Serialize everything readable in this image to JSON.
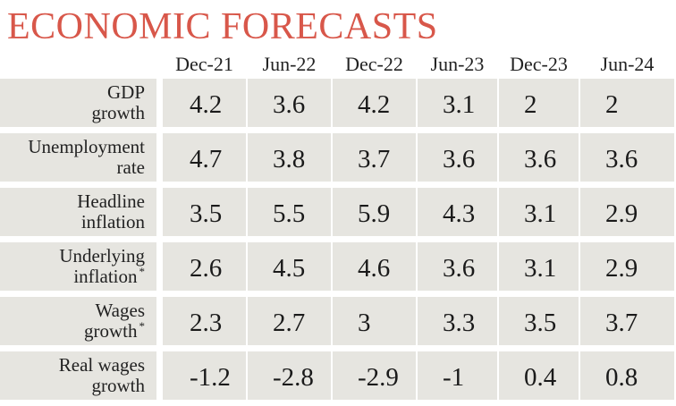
{
  "chart_data": {
    "type": "table",
    "title": "ECONOMIC FORECASTS",
    "columns": [
      "Dec-21",
      "Jun-22",
      "Dec-22",
      "Jun-23",
      "Dec-23",
      "Jun-24"
    ],
    "rows": [
      {
        "label_lines": [
          "GDP",
          "growth"
        ],
        "asterisk": false,
        "values": [
          "4.2",
          "3.6",
          "4.2",
          "3.1",
          "2",
          "2"
        ]
      },
      {
        "label_lines": [
          "Unemployment",
          "rate"
        ],
        "asterisk": false,
        "values": [
          "4.7",
          "3.8",
          "3.7",
          "3.6",
          "3.6",
          "3.6"
        ]
      },
      {
        "label_lines": [
          "Headline",
          "inflation"
        ],
        "asterisk": false,
        "values": [
          "3.5",
          "5.5",
          "5.9",
          "4.3",
          "3.1",
          "2.9"
        ]
      },
      {
        "label_lines": [
          "Underlying",
          "inflation"
        ],
        "asterisk": true,
        "values": [
          "2.6",
          "4.5",
          "4.6",
          "3.6",
          "3.1",
          "2.9"
        ]
      },
      {
        "label_lines": [
          "Wages",
          "growth"
        ],
        "asterisk": true,
        "values": [
          "2.3",
          "2.7",
          "3",
          "3.3",
          "3.5",
          "3.7"
        ]
      },
      {
        "label_lines": [
          "Real wages",
          "growth"
        ],
        "asterisk": false,
        "values": [
          "-1.2",
          "-2.8",
          "-2.9",
          "-1",
          "0.4",
          "0.8"
        ]
      }
    ],
    "asterisk_mark": "*"
  },
  "colors": {
    "title": "#d8574a",
    "cell_background": "#e6e5e0",
    "text": "#1a1a1a"
  }
}
